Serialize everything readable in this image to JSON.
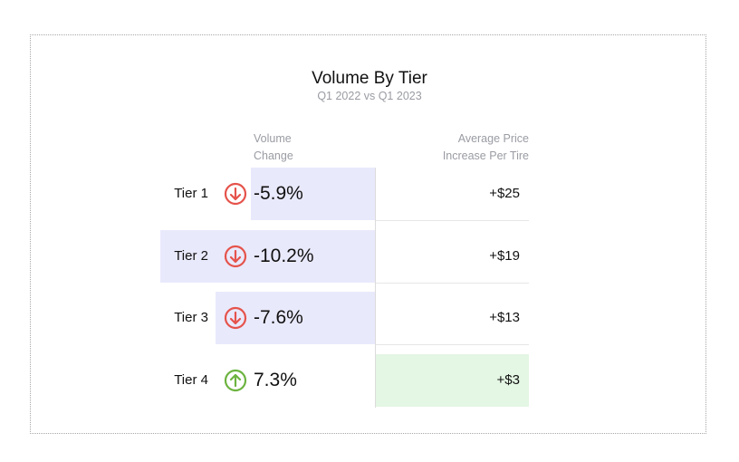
{
  "colors": {
    "volume_bar": "#e9e9fc",
    "price_highlight": "#e4f6e4",
    "down_arrow": "#e5534b",
    "up_arrow": "#6cb33f"
  },
  "chart_data": {
    "type": "table",
    "title": "Volume By Tier",
    "subtitle": "Q1 2022 vs Q1 2023",
    "columns": {
      "volume_change": [
        "Volume",
        "Change"
      ],
      "avg_price": [
        "Average Price",
        "Increase Per Tire"
      ]
    },
    "rows": [
      {
        "tier": "Tier 1",
        "direction": "down",
        "volume_change": -5.9,
        "volume_label": "-5.9%",
        "price_increase": 25,
        "price_label": "+$25",
        "price_highlight": false
      },
      {
        "tier": "Tier 2",
        "direction": "down",
        "volume_change": -10.2,
        "volume_label": "-10.2%",
        "price_increase": 19,
        "price_label": "+$19",
        "price_highlight": false
      },
      {
        "tier": "Tier 3",
        "direction": "down",
        "volume_change": -7.6,
        "volume_label": "-7.6%",
        "price_increase": 13,
        "price_label": "+$13",
        "price_highlight": false
      },
      {
        "tier": "Tier 4",
        "direction": "up",
        "volume_change": 7.3,
        "volume_label": "7.3%",
        "price_increase": 3,
        "price_label": "+$3",
        "price_highlight": true
      }
    ]
  }
}
